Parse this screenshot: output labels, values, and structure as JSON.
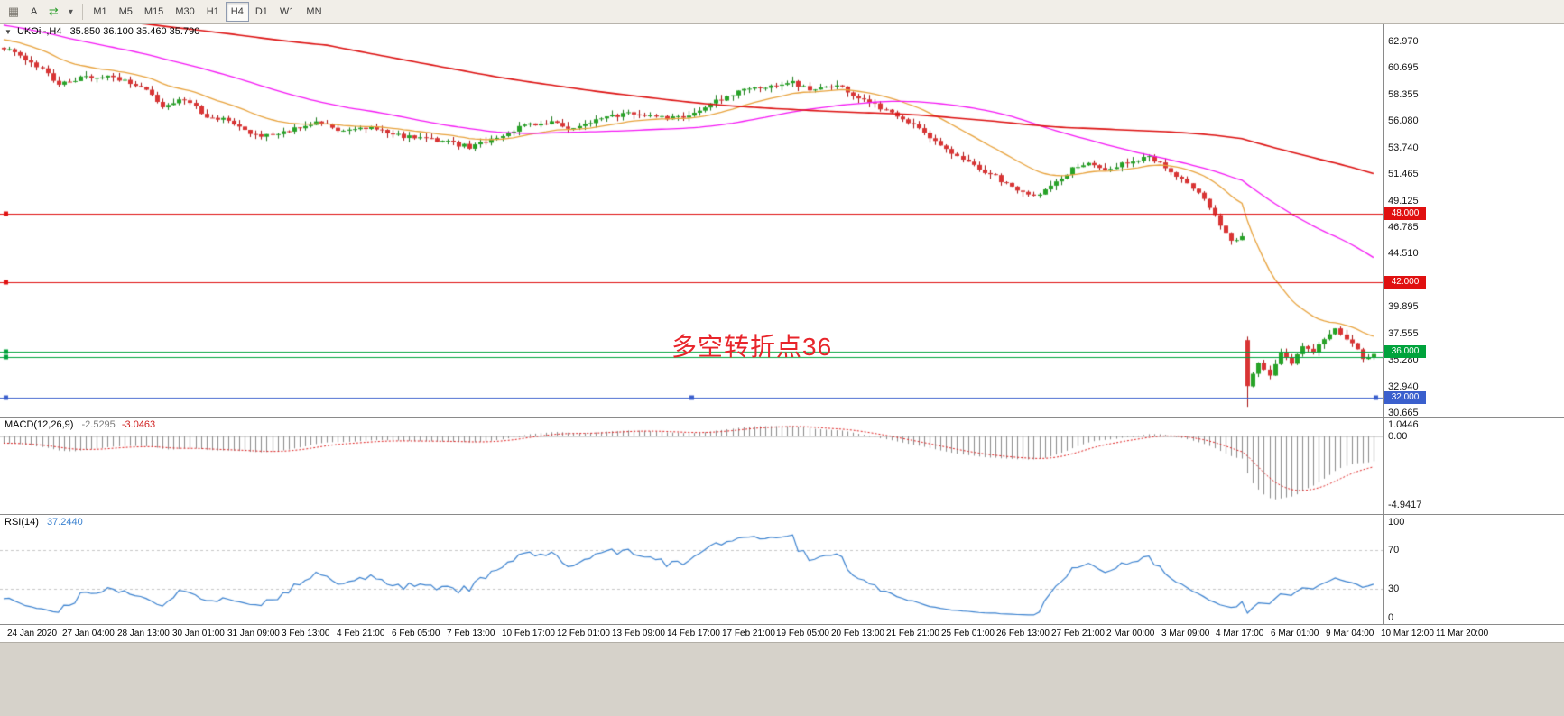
{
  "toolbar": {
    "icons": [
      {
        "name": "chart-grid-icon",
        "glyph": "▦"
      },
      {
        "name": "text-label-button",
        "glyph": "A"
      },
      {
        "name": "autoscroll-arrows-icon",
        "glyph": "⇄"
      },
      {
        "name": "dropdown-caret-icon",
        "glyph": "▾"
      }
    ],
    "timeframes": [
      {
        "label": "M1",
        "active": false
      },
      {
        "label": "M5",
        "active": false
      },
      {
        "label": "M15",
        "active": false
      },
      {
        "label": "M30",
        "active": false
      },
      {
        "label": "H1",
        "active": false
      },
      {
        "label": "H4",
        "active": true
      },
      {
        "label": "D1",
        "active": false
      },
      {
        "label": "W1",
        "active": false
      },
      {
        "label": "MN",
        "active": false
      }
    ]
  },
  "chart": {
    "collapse_glyph": "▼",
    "title": "UKOil-,H4",
    "ohlc_text": "35.850 36.100 35.460 35.790",
    "annotation": "多空转折点36",
    "annotation_color": "#e8252b",
    "price_axis_labels": [
      "62.970",
      "60.695",
      "58.355",
      "56.080",
      "53.740",
      "51.465",
      "49.125",
      "46.785",
      "44.510",
      "42.170",
      "39.895",
      "37.555",
      "35.280",
      "32.940",
      "30.665"
    ],
    "hlines": [
      {
        "price": 48.0,
        "label": "48.000",
        "color": "#e01010",
        "selected": false
      },
      {
        "price": 42.0,
        "label": "42.000",
        "color": "#e01010",
        "selected": false
      },
      {
        "price": 36.0,
        "label": "36.000",
        "color": "#00a33c",
        "selected": false
      },
      {
        "price": 35.55,
        "label": null,
        "color": "#00a33c",
        "selected": false
      },
      {
        "price": 32.0,
        "label": "32.000",
        "color": "#3a5fcd",
        "selected": true
      }
    ]
  },
  "macd": {
    "name": "MACD(12,26,9)",
    "value_main": "-2.5295",
    "value_signal": "-3.0463",
    "axis_labels": [
      {
        "text": "1.0446",
        "value": 1.0446
      },
      {
        "text": "0.00",
        "value": 0
      },
      {
        "text": "-4.9417",
        "value": -4.9417
      }
    ]
  },
  "rsi": {
    "name": "RSI(14)",
    "value": "37.2440",
    "axis_labels": [
      {
        "text": "100",
        "value": 100
      },
      {
        "text": "70",
        "value": 70
      },
      {
        "text": "30",
        "value": 30
      },
      {
        "text": "0",
        "value": 0
      }
    ],
    "levels": [
      70,
      30
    ],
    "line_color": "#3b82d0"
  },
  "time_axis": {
    "labels": [
      "24 Jan 2020",
      "27 Jan 04:00",
      "28 Jan 13:00",
      "30 Jan 01:00",
      "31 Jan 09:00",
      "3 Feb 13:00",
      "4 Feb 21:00",
      "6 Feb 05:00",
      "7 Feb 13:00",
      "10 Feb 17:00",
      "12 Feb 01:00",
      "13 Feb 09:00",
      "14 Feb 17:00",
      "17 Feb 21:00",
      "19 Feb 05:00",
      "20 Feb 13:00",
      "21 Feb 21:00",
      "25 Feb 01:00",
      "26 Feb 13:00",
      "27 Feb 21:00",
      "2 Mar 00:00",
      "3 Mar 09:00",
      "4 Mar 17:00",
      "6 Mar 01:00",
      "9 Mar 04:00",
      "10 Mar 12:00",
      "11 Mar 20:00"
    ]
  },
  "chart_data": {
    "type": "candlestick",
    "symbol": "UKOil-",
    "timeframe": "H4",
    "open": 35.85,
    "high": 36.1,
    "low": 35.46,
    "close": 35.79,
    "ylim": [
      30.35,
      64.46
    ],
    "macd_scale": [
      -5.6,
      1.35
    ],
    "prehistory_anchors": [
      [
        -90,
        69.3
      ],
      [
        -70,
        67.6
      ],
      [
        -50,
        66.0
      ],
      [
        -30,
        64.6
      ],
      [
        -15,
        63.5
      ],
      [
        -5,
        62.9
      ]
    ],
    "close_anchors": [
      [
        0,
        62.4
      ],
      [
        3,
        61.7
      ],
      [
        6,
        60.9
      ],
      [
        10,
        59.3
      ],
      [
        14,
        59.8
      ],
      [
        18,
        60.0
      ],
      [
        22,
        59.6
      ],
      [
        26,
        58.8
      ],
      [
        29,
        57.4
      ],
      [
        33,
        57.9
      ],
      [
        37,
        56.5
      ],
      [
        41,
        56.1
      ],
      [
        45,
        55.0
      ],
      [
        47,
        54.7
      ],
      [
        52,
        55.3
      ],
      [
        57,
        56.0
      ],
      [
        62,
        55.1
      ],
      [
        67,
        55.6
      ],
      [
        72,
        54.8
      ],
      [
        77,
        54.5
      ],
      [
        81,
        54.2
      ],
      [
        85,
        53.8
      ],
      [
        90,
        54.5
      ],
      [
        95,
        55.7
      ],
      [
        100,
        55.9
      ],
      [
        104,
        55.4
      ],
      [
        109,
        56.3
      ],
      [
        114,
        56.7
      ],
      [
        119,
        56.4
      ],
      [
        124,
        56.3
      ],
      [
        129,
        57.6
      ],
      [
        134,
        58.6
      ],
      [
        139,
        59.1
      ],
      [
        144,
        59.4
      ],
      [
        147,
        58.7
      ],
      [
        152,
        59.2
      ],
      [
        155,
        58.3
      ],
      [
        160,
        57.2
      ],
      [
        165,
        56.0
      ],
      [
        169,
        54.6
      ],
      [
        173,
        53.2
      ],
      [
        177,
        52.1
      ],
      [
        181,
        51.2
      ],
      [
        184,
        50.3
      ],
      [
        188,
        49.5
      ],
      [
        191,
        50.4
      ],
      [
        195,
        51.9
      ],
      [
        198,
        52.3
      ],
      [
        201,
        51.8
      ],
      [
        204,
        52.3
      ],
      [
        209,
        52.9
      ],
      [
        212,
        52.1
      ],
      [
        215,
        50.9
      ],
      [
        218,
        49.8
      ],
      [
        220,
        48.6
      ],
      [
        222,
        46.9
      ],
      [
        224,
        45.5
      ],
      [
        226,
        45.9
      ],
      [
        227,
        33.0
      ],
      [
        229,
        34.9
      ],
      [
        231,
        33.8
      ],
      [
        233,
        35.9
      ],
      [
        235,
        35.1
      ],
      [
        237,
        36.4
      ],
      [
        239,
        36.0
      ],
      [
        241,
        37.1
      ],
      [
        243,
        38.0
      ],
      [
        245,
        37.2
      ],
      [
        247,
        36.1
      ],
      [
        248,
        35.5
      ],
      [
        250,
        35.79
      ]
    ],
    "candle_overrides": {
      "227": [
        37.0,
        37.3,
        31.2,
        33.0
      ]
    },
    "colors": {
      "up": "#27a327",
      "up_wick": "#1d7a1d",
      "down": "#d93434",
      "down_wick": "#a81414"
    },
    "moving_averages": [
      {
        "name": "ma-fast",
        "period": 20,
        "mode": "ema",
        "color": "#e8a33d",
        "width": 1.3
      },
      {
        "name": "ma-mid",
        "period": 55,
        "mode": "sma",
        "color": "#f516f5",
        "width": 1.3
      },
      {
        "name": "ma-slow",
        "period": 150,
        "mode": "sma",
        "color": "#dd1111",
        "width": 1.6
      }
    ]
  }
}
